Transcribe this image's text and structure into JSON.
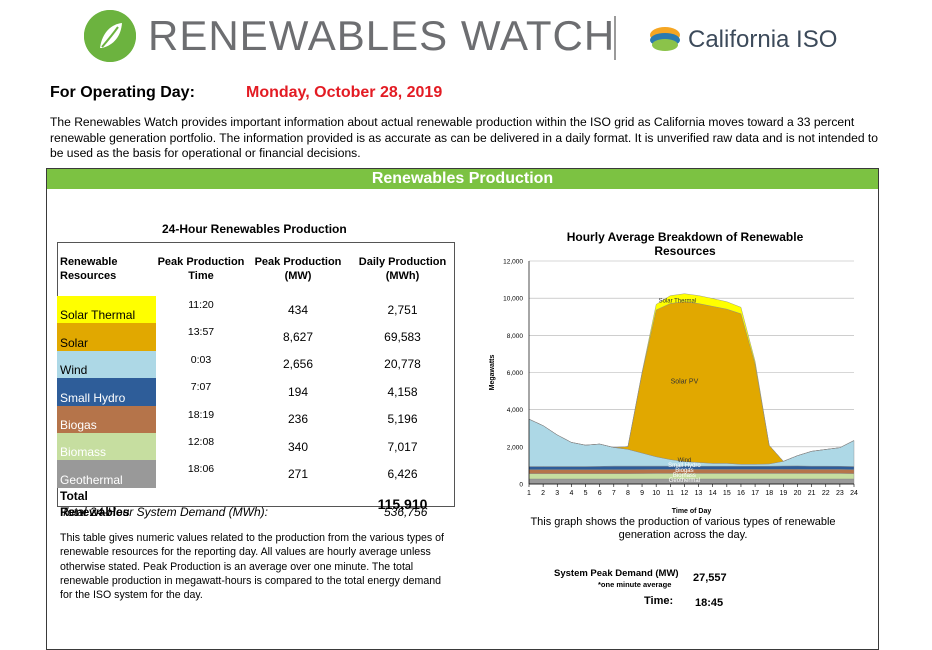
{
  "header": {
    "logo_text": "RENEWABLES WATCH",
    "partner_text": "California ISO",
    "operating_day_label": "For Operating Day:",
    "operating_day_value": "Monday, October 28, 2019",
    "intro": "The Renewables Watch provides important information about actual renewable production within the ISO grid as California moves toward a 33 percent renewable generation portfolio. The information provided is as accurate as can be delivered in a daily format.  It is unverified raw data and is not intended to be used as the basis for operational or financial decisions."
  },
  "panel": {
    "title": "Renewables Production"
  },
  "table": {
    "title": "24-Hour Renewables Production",
    "headers": [
      "Renewable Resources",
      "Peak Production Time",
      "Peak Production (MW)",
      "Daily Production (MWh)"
    ],
    "rows": [
      {
        "resource": "Solar Thermal",
        "time": "11:20",
        "peak": "434",
        "daily": "2,751",
        "color": "#ffff00",
        "text_color": "#000000"
      },
      {
        "resource": "Solar",
        "time": "13:57",
        "peak": "8,627",
        "daily": "69,583",
        "color": "#e1a800",
        "text_color": "#000000"
      },
      {
        "resource": "Wind",
        "time": "0:03",
        "peak": "2,656",
        "daily": "20,778",
        "color": "#add8e6",
        "text_color": "#000000"
      },
      {
        "resource": "Small Hydro",
        "time": "7:07",
        "peak": "194",
        "daily": "4,158",
        "color": "#2e5d99",
        "text_color": "#ffffff"
      },
      {
        "resource": "Biogas",
        "time": "18:19",
        "peak": "236",
        "daily": "5,196",
        "color": "#b5744a",
        "text_color": "#ffffff"
      },
      {
        "resource": "Biomass",
        "time": "12:08",
        "peak": "340",
        "daily": "7,017",
        "color": "#c6dea0",
        "text_color": "#ffffff"
      },
      {
        "resource": "Geothermal",
        "time": "18:06",
        "peak": "271",
        "daily": "6,426",
        "color": "#999999",
        "text_color": "#ffffff"
      }
    ],
    "total_label": "Total Renewables",
    "total_value": "115,910",
    "demand_label": "Total 24-Hour System Demand (MWh):",
    "demand_value": "536,756",
    "notes": "This table gives numeric values related to the production from the various types of renewable resources for the reporting day. All values are hourly average unless otherwise stated. Peak Production is an average over one minute. The total renewable production in megawatt-hours is compared to the total energy demand for the ISO system for the day."
  },
  "chart": {
    "title": "Hourly Average Breakdown of Renewable Resources",
    "caption": "This graph shows the production of various types of renewable generation across the day."
  },
  "system": {
    "peak_label": "System Peak Demand (MW)",
    "peak_sub": "*one minute average",
    "peak_value": "27,557",
    "time_label": "Time:",
    "time_value": "18:45"
  },
  "chart_data": {
    "type": "area",
    "title": "Hourly Average Breakdown of Renewable Resources",
    "xlabel": "Time of Day",
    "ylabel": "Megawatts",
    "x": [
      1,
      2,
      3,
      4,
      5,
      6,
      7,
      8,
      9,
      10,
      11,
      12,
      13,
      14,
      15,
      16,
      17,
      18,
      19,
      20,
      21,
      22,
      23,
      24
    ],
    "ylim": [
      0,
      12000
    ],
    "yticks": [
      "0",
      "2,000",
      "4,000",
      "6,000",
      "8,000",
      "10,000",
      "12,000"
    ],
    "grid": true,
    "stack_order": [
      "Geothermal",
      "Biomass",
      "Biogas",
      "Small Hydro",
      "Wind",
      "Solar PV",
      "Solar Thermal"
    ],
    "series": [
      {
        "name": "Geothermal",
        "color": "#999999",
        "values": [
          270,
          270,
          270,
          270,
          270,
          270,
          270,
          270,
          270,
          270,
          270,
          270,
          270,
          270,
          270,
          270,
          270,
          270,
          270,
          270,
          270,
          270,
          270,
          270
        ]
      },
      {
        "name": "Biomass",
        "color": "#c6dea0",
        "values": [
          290,
          290,
          290,
          290,
          290,
          290,
          290,
          290,
          295,
          300,
          300,
          300,
          300,
          300,
          300,
          300,
          300,
          300,
          300,
          300,
          300,
          300,
          300,
          290
        ]
      },
      {
        "name": "Biogas",
        "color": "#b5744a",
        "values": [
          215,
          215,
          215,
          215,
          215,
          215,
          215,
          215,
          215,
          215,
          215,
          215,
          215,
          215,
          215,
          215,
          215,
          215,
          220,
          220,
          215,
          215,
          215,
          215
        ]
      },
      {
        "name": "Small Hydro",
        "color": "#2e5d99",
        "values": [
          165,
          165,
          165,
          165,
          165,
          175,
          190,
          190,
          185,
          180,
          180,
          175,
          175,
          175,
          175,
          175,
          175,
          175,
          180,
          185,
          175,
          175,
          170,
          165
        ]
      },
      {
        "name": "Wind",
        "color": "#add8e6",
        "values": [
          2550,
          2200,
          1700,
          1300,
          1150,
          1200,
          1000,
          900,
          700,
          500,
          350,
          250,
          200,
          150,
          150,
          100,
          100,
          120,
          250,
          550,
          800,
          900,
          1000,
          1400
        ]
      },
      {
        "name": "Solar PV",
        "color": "#e1a800",
        "values": [
          0,
          0,
          0,
          0,
          0,
          0,
          0,
          150,
          4300,
          7900,
          8400,
          8600,
          8550,
          8450,
          8300,
          8100,
          5400,
          1000,
          0,
          0,
          0,
          0,
          0,
          0
        ]
      },
      {
        "name": "Solar Thermal",
        "color": "#ffff00",
        "values": [
          0,
          0,
          0,
          0,
          0,
          0,
          0,
          0,
          50,
          300,
          420,
          430,
          430,
          420,
          400,
          350,
          150,
          0,
          0,
          0,
          0,
          0,
          0,
          0
        ]
      }
    ],
    "annotations": [
      "Solar Thermal",
      "Solar PV",
      "Wind",
      "Small Hydro",
      "Biogas",
      "Biomass",
      "Geothermal"
    ]
  }
}
